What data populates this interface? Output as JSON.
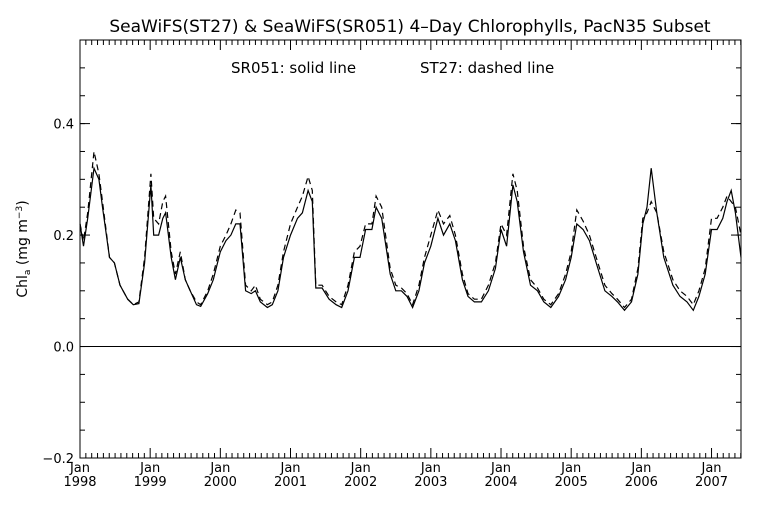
{
  "chart_data": {
    "type": "line",
    "title": "SeaWiFS(ST27) & SeaWiFS(SR051) 4–Day Chlorophylls, PacN35 Subset",
    "annotation_left": "SR051: solid line",
    "annotation_right": "ST27: dashed line",
    "ylabel": {
      "main": "Chl",
      "sub": "a",
      "units_open": " (mg m",
      "units_sup": "−3",
      "units_close": ")"
    },
    "ylim": [
      -0.2,
      0.55
    ],
    "xlim": [
      1998.0,
      2007.42
    ],
    "y_ticks": [
      {
        "value": -0.2,
        "label": "−0.2"
      },
      {
        "value": 0.0,
        "label": "0.0"
      },
      {
        "value": 0.2,
        "label": "0.2"
      },
      {
        "value": 0.4,
        "label": "0.4"
      }
    ],
    "x_ticks": [
      {
        "value": 1998,
        "month": "Jan",
        "year": "1998"
      },
      {
        "value": 1999,
        "month": "Jan",
        "year": "1999"
      },
      {
        "value": 2000,
        "month": "Jan",
        "year": "2000"
      },
      {
        "value": 2001,
        "month": "Jan",
        "year": "2001"
      },
      {
        "value": 2002,
        "month": "Jan",
        "year": "2002"
      },
      {
        "value": 2003,
        "month": "Jan",
        "year": "2003"
      },
      {
        "value": 2004,
        "month": "Jan",
        "year": "2004"
      },
      {
        "value": 2005,
        "month": "Jan",
        "year": "2005"
      },
      {
        "value": 2006,
        "month": "Jan",
        "year": "2006"
      },
      {
        "value": 2007,
        "month": "Jan",
        "year": "2007"
      }
    ],
    "zero_line": 0.0,
    "series": [
      {
        "name": "SR051",
        "style": "solid",
        "color": "#000000",
        "points": [
          [
            1998.0,
            0.22
          ],
          [
            1998.05,
            0.18
          ],
          [
            1998.11,
            0.23
          ],
          [
            1998.2,
            0.32
          ],
          [
            1998.27,
            0.3
          ],
          [
            1998.32,
            0.25
          ],
          [
            1998.42,
            0.16
          ],
          [
            1998.49,
            0.15
          ],
          [
            1998.57,
            0.11
          ],
          [
            1998.68,
            0.085
          ],
          [
            1998.76,
            0.075
          ],
          [
            1998.84,
            0.077
          ],
          [
            1998.92,
            0.15
          ],
          [
            1999.01,
            0.29
          ],
          [
            1999.05,
            0.2
          ],
          [
            1999.12,
            0.2
          ],
          [
            1999.18,
            0.23
          ],
          [
            1999.22,
            0.24
          ],
          [
            1999.3,
            0.16
          ],
          [
            1999.36,
            0.12
          ],
          [
            1999.43,
            0.16
          ],
          [
            1999.5,
            0.12
          ],
          [
            1999.57,
            0.1
          ],
          [
            1999.66,
            0.075
          ],
          [
            1999.72,
            0.072
          ],
          [
            1999.82,
            0.095
          ],
          [
            1999.9,
            0.12
          ],
          [
            2000.0,
            0.17
          ],
          [
            2000.08,
            0.19
          ],
          [
            2000.15,
            0.2
          ],
          [
            2000.22,
            0.22
          ],
          [
            2000.28,
            0.22
          ],
          [
            2000.36,
            0.1
          ],
          [
            2000.44,
            0.095
          ],
          [
            2000.5,
            0.1
          ],
          [
            2000.57,
            0.08
          ],
          [
            2000.67,
            0.07
          ],
          [
            2000.74,
            0.075
          ],
          [
            2000.82,
            0.1
          ],
          [
            2000.9,
            0.16
          ],
          [
            2001.0,
            0.2
          ],
          [
            2001.1,
            0.23
          ],
          [
            2001.17,
            0.24
          ],
          [
            2001.25,
            0.28
          ],
          [
            2001.31,
            0.26
          ],
          [
            2001.36,
            0.105
          ],
          [
            2001.45,
            0.105
          ],
          [
            2001.55,
            0.085
          ],
          [
            2001.65,
            0.075
          ],
          [
            2001.73,
            0.07
          ],
          [
            2001.82,
            0.1
          ],
          [
            2001.91,
            0.16
          ],
          [
            2001.99,
            0.16
          ],
          [
            2002.07,
            0.21
          ],
          [
            2002.16,
            0.21
          ],
          [
            2002.22,
            0.25
          ],
          [
            2002.3,
            0.23
          ],
          [
            2002.42,
            0.13
          ],
          [
            2002.5,
            0.1
          ],
          [
            2002.58,
            0.1
          ],
          [
            2002.66,
            0.09
          ],
          [
            2002.74,
            0.07
          ],
          [
            2002.83,
            0.1
          ],
          [
            2002.91,
            0.15
          ],
          [
            2003.0,
            0.18
          ],
          [
            2003.1,
            0.23
          ],
          [
            2003.18,
            0.2
          ],
          [
            2003.27,
            0.22
          ],
          [
            2003.35,
            0.19
          ],
          [
            2003.45,
            0.12
          ],
          [
            2003.53,
            0.09
          ],
          [
            2003.62,
            0.08
          ],
          [
            2003.72,
            0.08
          ],
          [
            2003.82,
            0.1
          ],
          [
            2003.92,
            0.14
          ],
          [
            2004.0,
            0.21
          ],
          [
            2004.08,
            0.18
          ],
          [
            2004.17,
            0.29
          ],
          [
            2004.23,
            0.26
          ],
          [
            2004.32,
            0.17
          ],
          [
            2004.42,
            0.11
          ],
          [
            2004.52,
            0.1
          ],
          [
            2004.61,
            0.08
          ],
          [
            2004.71,
            0.07
          ],
          [
            2004.82,
            0.09
          ],
          [
            2004.92,
            0.12
          ],
          [
            2005.0,
            0.16
          ],
          [
            2005.08,
            0.22
          ],
          [
            2005.17,
            0.21
          ],
          [
            2005.26,
            0.19
          ],
          [
            2005.38,
            0.14
          ],
          [
            2005.48,
            0.1
          ],
          [
            2005.58,
            0.09
          ],
          [
            2005.66,
            0.08
          ],
          [
            2005.76,
            0.065
          ],
          [
            2005.86,
            0.08
          ],
          [
            2005.95,
            0.13
          ],
          [
            2006.02,
            0.22
          ],
          [
            2006.08,
            0.25
          ],
          [
            2006.14,
            0.32
          ],
          [
            2006.22,
            0.24
          ],
          [
            2006.32,
            0.16
          ],
          [
            2006.45,
            0.11
          ],
          [
            2006.55,
            0.09
          ],
          [
            2006.65,
            0.08
          ],
          [
            2006.74,
            0.065
          ],
          [
            2006.82,
            0.09
          ],
          [
            2006.91,
            0.13
          ],
          [
            2007.0,
            0.21
          ],
          [
            2007.08,
            0.21
          ],
          [
            2007.16,
            0.23
          ],
          [
            2007.22,
            0.26
          ],
          [
            2007.28,
            0.28
          ],
          [
            2007.34,
            0.24
          ],
          [
            2007.42,
            0.16
          ]
        ]
      },
      {
        "name": "ST27",
        "style": "dashed",
        "color": "#000000",
        "points": [
          [
            1998.0,
            0.22
          ],
          [
            1998.05,
            0.19
          ],
          [
            1998.11,
            0.24
          ],
          [
            1998.2,
            0.35
          ],
          [
            1998.27,
            0.31
          ],
          [
            1998.32,
            0.26
          ],
          [
            1998.42,
            0.16
          ],
          [
            1998.49,
            0.15
          ],
          [
            1998.57,
            0.11
          ],
          [
            1998.68,
            0.085
          ],
          [
            1998.76,
            0.075
          ],
          [
            1998.84,
            0.08
          ],
          [
            1998.92,
            0.16
          ],
          [
            1999.01,
            0.31
          ],
          [
            1999.05,
            0.23
          ],
          [
            1999.12,
            0.22
          ],
          [
            1999.18,
            0.26
          ],
          [
            1999.22,
            0.27
          ],
          [
            1999.3,
            0.17
          ],
          [
            1999.36,
            0.13
          ],
          [
            1999.43,
            0.17
          ],
          [
            1999.5,
            0.12
          ],
          [
            1999.57,
            0.1
          ],
          [
            1999.66,
            0.08
          ],
          [
            1999.72,
            0.075
          ],
          [
            1999.82,
            0.1
          ],
          [
            1999.9,
            0.13
          ],
          [
            2000.0,
            0.18
          ],
          [
            2000.08,
            0.2
          ],
          [
            2000.15,
            0.22
          ],
          [
            2000.22,
            0.245
          ],
          [
            2000.28,
            0.24
          ],
          [
            2000.36,
            0.11
          ],
          [
            2000.44,
            0.1
          ],
          [
            2000.5,
            0.11
          ],
          [
            2000.57,
            0.085
          ],
          [
            2000.67,
            0.075
          ],
          [
            2000.74,
            0.08
          ],
          [
            2000.82,
            0.11
          ],
          [
            2000.9,
            0.17
          ],
          [
            2001.0,
            0.22
          ],
          [
            2001.1,
            0.25
          ],
          [
            2001.17,
            0.27
          ],
          [
            2001.25,
            0.305
          ],
          [
            2001.31,
            0.28
          ],
          [
            2001.36,
            0.11
          ],
          [
            2001.45,
            0.11
          ],
          [
            2001.55,
            0.09
          ],
          [
            2001.65,
            0.08
          ],
          [
            2001.73,
            0.075
          ],
          [
            2001.82,
            0.11
          ],
          [
            2001.91,
            0.17
          ],
          [
            2001.99,
            0.18
          ],
          [
            2002.07,
            0.22
          ],
          [
            2002.16,
            0.22
          ],
          [
            2002.22,
            0.27
          ],
          [
            2002.3,
            0.25
          ],
          [
            2002.42,
            0.14
          ],
          [
            2002.5,
            0.11
          ],
          [
            2002.58,
            0.105
          ],
          [
            2002.66,
            0.095
          ],
          [
            2002.74,
            0.075
          ],
          [
            2002.83,
            0.11
          ],
          [
            2002.91,
            0.16
          ],
          [
            2003.0,
            0.2
          ],
          [
            2003.1,
            0.245
          ],
          [
            2003.18,
            0.22
          ],
          [
            2003.27,
            0.235
          ],
          [
            2003.35,
            0.2
          ],
          [
            2003.45,
            0.13
          ],
          [
            2003.53,
            0.095
          ],
          [
            2003.62,
            0.085
          ],
          [
            2003.72,
            0.085
          ],
          [
            2003.82,
            0.11
          ],
          [
            2003.92,
            0.15
          ],
          [
            2004.0,
            0.22
          ],
          [
            2004.08,
            0.2
          ],
          [
            2004.17,
            0.31
          ],
          [
            2004.23,
            0.28
          ],
          [
            2004.32,
            0.18
          ],
          [
            2004.42,
            0.12
          ],
          [
            2004.52,
            0.105
          ],
          [
            2004.61,
            0.085
          ],
          [
            2004.71,
            0.075
          ],
          [
            2004.82,
            0.095
          ],
          [
            2004.92,
            0.13
          ],
          [
            2005.0,
            0.17
          ],
          [
            2005.08,
            0.245
          ],
          [
            2005.17,
            0.225
          ],
          [
            2005.26,
            0.2
          ],
          [
            2005.38,
            0.15
          ],
          [
            2005.48,
            0.11
          ],
          [
            2005.58,
            0.095
          ],
          [
            2005.66,
            0.085
          ],
          [
            2005.76,
            0.07
          ],
          [
            2005.86,
            0.085
          ],
          [
            2005.95,
            0.14
          ],
          [
            2006.02,
            0.23
          ],
          [
            2006.08,
            0.24
          ],
          [
            2006.14,
            0.26
          ],
          [
            2006.22,
            0.24
          ],
          [
            2006.32,
            0.17
          ],
          [
            2006.45,
            0.12
          ],
          [
            2006.55,
            0.1
          ],
          [
            2006.65,
            0.09
          ],
          [
            2006.74,
            0.075
          ],
          [
            2006.82,
            0.1
          ],
          [
            2006.91,
            0.14
          ],
          [
            2007.0,
            0.23
          ],
          [
            2007.08,
            0.23
          ],
          [
            2007.16,
            0.25
          ],
          [
            2007.22,
            0.27
          ],
          [
            2007.28,
            0.26
          ],
          [
            2007.34,
            0.25
          ],
          [
            2007.42,
            0.2
          ]
        ]
      }
    ]
  }
}
